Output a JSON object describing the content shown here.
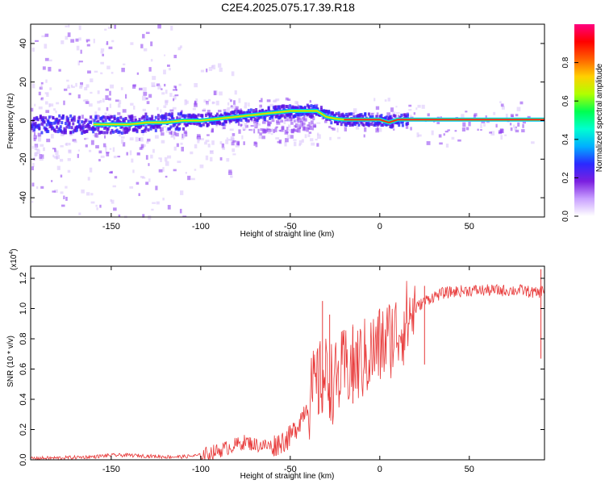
{
  "page_title": "C2E4.2025.075.17.39.R18",
  "chart_data": [
    {
      "type": "heatmap",
      "title": "C2E4.2025.075.17.39.R18",
      "xlabel": "Height of straight line (km)",
      "ylabel": "Frequency (Hz)",
      "xlim": [
        -195,
        92
      ],
      "ylim": [
        -50,
        50
      ],
      "xticks": [
        -150,
        -100,
        -50,
        0,
        50
      ],
      "yticks": [
        -40,
        -20,
        0,
        20,
        40
      ],
      "grid": false,
      "colorbar": {
        "label": "Normalized spectral amplitude",
        "range": [
          0,
          1
        ],
        "ticks": [
          "0.0",
          "0.2",
          "0.4",
          "0.6",
          "0.8"
        ],
        "colors": [
          "#ffffff",
          "#c9a0ff",
          "#7b1fe0",
          "#2a2aff",
          "#00b0ff",
          "#00ffd0",
          "#00ff50",
          "#b0ff00",
          "#ffd000",
          "#ff6000",
          "#ff0000",
          "#ff0080"
        ]
      },
      "centerline": {
        "x": [
          -160,
          -150,
          -140,
          -130,
          -120,
          -110,
          -100,
          -90,
          -80,
          -70,
          -60,
          -50,
          -40,
          -35,
          -30,
          -25,
          -20,
          -10,
          0,
          5,
          10,
          15,
          20,
          50,
          92
        ],
        "y": [
          -2,
          -2,
          -2,
          -1,
          -1,
          0,
          0,
          1,
          2,
          3,
          4,
          5,
          5,
          5,
          2,
          1,
          0.5,
          0.5,
          0.5,
          -1,
          0.5,
          0.5,
          0.5,
          0.5,
          0.5
        ]
      }
    },
    {
      "type": "line",
      "xlabel": "Height of straight line (km)",
      "ylabel": "SNR (10 * v/v)",
      "yscale_label": "(x10^4)",
      "yscale_base": "(x10",
      "yscale_exp": "4",
      "xlim": [
        -195,
        92
      ],
      "ylim": [
        0,
        1.28
      ],
      "xticks": [
        -150,
        -100,
        -50,
        0,
        50
      ],
      "yticks": [
        "0.0",
        "0.2",
        "0.4",
        "0.6",
        "0.8",
        "1.0",
        "1.2"
      ],
      "series": [
        {
          "color": "#e83a3a",
          "x": [
            -195,
            -180,
            -160,
            -150,
            -140,
            -130,
            -120,
            -110,
            -100,
            -90,
            -80,
            -75,
            -70,
            -60,
            -55,
            -50,
            -45,
            -40,
            -35,
            -30,
            -25,
            -20,
            -15,
            -10,
            -5,
            0,
            5,
            10,
            15,
            20,
            25,
            30,
            35,
            40,
            50,
            60,
            70,
            80,
            88,
            92
          ],
          "y": [
            0.01,
            0.012,
            0.02,
            0.03,
            0.03,
            0.025,
            0.02,
            0.02,
            0.03,
            0.06,
            0.1,
            0.12,
            0.1,
            0.09,
            0.12,
            0.15,
            0.25,
            0.38,
            0.5,
            0.55,
            0.5,
            0.6,
            0.62,
            0.65,
            0.7,
            0.75,
            0.8,
            0.85,
            0.92,
            1.0,
            1.05,
            1.08,
            1.1,
            1.11,
            1.12,
            1.12,
            1.12,
            1.12,
            1.1,
            1.13
          ],
          "spikes": [
            {
              "x": -32,
              "y": 1.05
            },
            {
              "x": -28,
              "y": 0.96
            },
            {
              "x": -15,
              "y": 0.88
            },
            {
              "x": 25,
              "y": 1.15
            },
            {
              "x": 90,
              "y": 1.26
            }
          ]
        }
      ]
    }
  ]
}
